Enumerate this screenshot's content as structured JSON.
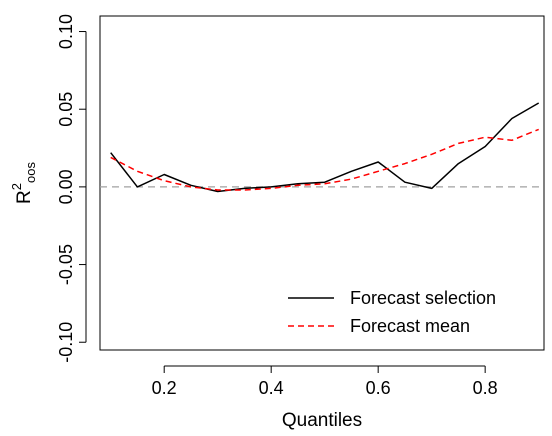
{
  "chart_data": {
    "type": "line",
    "xlabel": "Quantiles",
    "ylabel": "R",
    "ylabel_sup": "2",
    "ylabel_sub": "oos",
    "xlim": [
      0.08,
      0.91
    ],
    "ylim": [
      -0.105,
      0.11
    ],
    "x_ticks": [
      0.2,
      0.4,
      0.6,
      0.8
    ],
    "x_tick_labels": [
      "0.2",
      "0.4",
      "0.6",
      "0.8"
    ],
    "y_ticks": [
      -0.1,
      -0.05,
      0.0,
      0.05,
      0.1
    ],
    "y_tick_labels": [
      "-0.10",
      "-0.05",
      "0.00",
      "0.05",
      "0.10"
    ],
    "reference_line": {
      "y": 0.0,
      "color": "#a0a0a0",
      "style": "dashed"
    },
    "legend_position": "bottom-right",
    "x": [
      0.1,
      0.15,
      0.2,
      0.25,
      0.3,
      0.35,
      0.4,
      0.45,
      0.5,
      0.55,
      0.6,
      0.65,
      0.7,
      0.75,
      0.8,
      0.85,
      0.9
    ],
    "series": [
      {
        "name": "Forecast selection",
        "color": "#000000",
        "style": "solid",
        "values": [
          0.022,
          0.0,
          0.008,
          0.001,
          -0.003,
          -0.001,
          0.0,
          0.002,
          0.003,
          0.01,
          0.016,
          0.003,
          -0.001,
          0.015,
          0.026,
          0.044,
          0.054
        ]
      },
      {
        "name": "Forecast mean",
        "color": "#ff0000",
        "style": "dashed",
        "values": [
          0.019,
          0.01,
          0.004,
          0.0,
          -0.002,
          -0.002,
          -0.001,
          0.001,
          0.002,
          0.005,
          0.01,
          0.015,
          0.021,
          0.028,
          0.032,
          0.03,
          0.037
        ]
      }
    ]
  }
}
